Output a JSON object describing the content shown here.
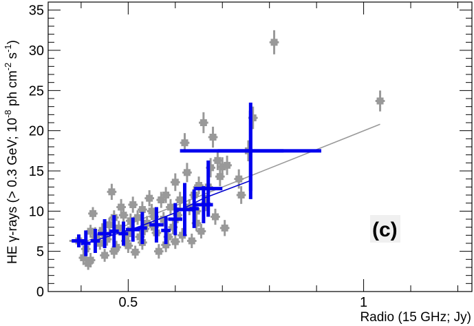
{
  "chart_data": {
    "type": "scatter",
    "xlabel": "Radio (15 GHz; Jy)",
    "ylabel_parts": {
      "pre": "HE ",
      "gamma": "γ",
      "mid": "-rays (> 0.3 GeV; 10",
      "exp1": "-8",
      "mid2": " ph cm",
      "exp2": "-2",
      "mid3": " s",
      "exp3": "-1",
      "post": ")"
    },
    "panel_label": "(c)",
    "xlim": [
      0.33,
      1.23
    ],
    "ylim": [
      0,
      36
    ],
    "x_tick_labels": [
      {
        "value": 0.5,
        "label": "0.5"
      },
      {
        "value": 1.0,
        "label": "1"
      }
    ],
    "y_tick_labels": [
      {
        "value": 0,
        "label": "0"
      },
      {
        "value": 5,
        "label": "5"
      },
      {
        "value": 10,
        "label": "10"
      },
      {
        "value": 15,
        "label": "15"
      },
      {
        "value": 20,
        "label": "20"
      },
      {
        "value": 25,
        "label": "25"
      },
      {
        "value": 30,
        "label": "30"
      },
      {
        "value": 35,
        "label": "35"
      }
    ],
    "colors": {
      "gray": "#999999",
      "blue": "#0000ee",
      "gray_line": "#999999",
      "blue_line": "#0000cc"
    },
    "series": [
      {
        "kind": "gray-points",
        "points": [
          [
            0.395,
            6.3,
            0.02,
            0.8
          ],
          [
            0.42,
            7.5,
            0.01,
            0.8
          ],
          [
            0.43,
            6.8,
            0.01,
            1.2
          ],
          [
            0.41,
            5.3,
            0.01,
            1.0
          ],
          [
            0.405,
            4.2,
            0.01,
            0.9
          ],
          [
            0.42,
            3.9,
            0.01,
            0.9
          ],
          [
            0.415,
            3.5,
            0.01,
            0.8
          ],
          [
            0.425,
            9.7,
            0.01,
            0.8
          ],
          [
            0.44,
            6.0,
            0.01,
            0.8
          ],
          [
            0.445,
            7.6,
            0.01,
            0.9
          ],
          [
            0.455,
            6.5,
            0.01,
            0.8
          ],
          [
            0.46,
            8.3,
            0.01,
            0.9
          ],
          [
            0.465,
            12.4,
            0.01,
            1.0
          ],
          [
            0.47,
            9.2,
            0.01,
            0.9
          ],
          [
            0.475,
            5.5,
            0.01,
            0.8
          ],
          [
            0.48,
            7.9,
            0.01,
            0.9
          ],
          [
            0.485,
            10.5,
            0.01,
            1.0
          ],
          [
            0.49,
            9.5,
            0.01,
            0.9
          ],
          [
            0.495,
            6.3,
            0.01,
            0.8
          ],
          [
            0.5,
            7.2,
            0.01,
            0.9
          ],
          [
            0.505,
            8.8,
            0.01,
            0.9
          ],
          [
            0.51,
            10.8,
            0.01,
            1.0
          ],
          [
            0.515,
            4.9,
            0.01,
            0.8
          ],
          [
            0.52,
            9.2,
            0.01,
            0.9
          ],
          [
            0.525,
            6.8,
            0.01,
            0.9
          ],
          [
            0.53,
            10.2,
            0.01,
            1.0
          ],
          [
            0.535,
            7.8,
            0.01,
            0.8
          ],
          [
            0.54,
            8.5,
            0.01,
            0.9
          ],
          [
            0.545,
            11.6,
            0.01,
            1.0
          ],
          [
            0.55,
            10.0,
            0.01,
            0.9
          ],
          [
            0.555,
            8.0,
            0.01,
            0.8
          ],
          [
            0.56,
            7.3,
            0.01,
            0.9
          ],
          [
            0.565,
            5.0,
            0.01,
            0.9
          ],
          [
            0.57,
            11.4,
            0.01,
            1.0
          ],
          [
            0.575,
            9.0,
            0.01,
            0.9
          ],
          [
            0.58,
            12.0,
            0.01,
            1.0
          ],
          [
            0.585,
            6.8,
            0.01,
            0.9
          ],
          [
            0.59,
            10.5,
            0.01,
            1.0
          ],
          [
            0.595,
            8.0,
            0.01,
            0.9
          ],
          [
            0.6,
            13.6,
            0.01,
            1.1
          ],
          [
            0.605,
            9.5,
            0.01,
            1.0
          ],
          [
            0.61,
            11.4,
            0.01,
            1.0
          ],
          [
            0.615,
            7.0,
            0.01,
            0.9
          ],
          [
            0.62,
            18.5,
            0.01,
            1.2
          ],
          [
            0.625,
            14.8,
            0.01,
            1.2
          ],
          [
            0.63,
            10.5,
            0.01,
            1.0
          ],
          [
            0.635,
            6.3,
            0.01,
            0.9
          ],
          [
            0.64,
            12.0,
            0.01,
            1.1
          ],
          [
            0.645,
            8.5,
            0.01,
            1.0
          ],
          [
            0.65,
            13.2,
            0.01,
            1.1
          ],
          [
            0.655,
            7.5,
            0.01,
            0.9
          ],
          [
            0.66,
            21.0,
            0.01,
            1.3
          ],
          [
            0.665,
            11.0,
            0.01,
            1.0
          ],
          [
            0.67,
            13.0,
            0.01,
            1.1
          ],
          [
            0.675,
            15.4,
            0.01,
            1.2
          ],
          [
            0.68,
            19.2,
            0.01,
            1.3
          ],
          [
            0.685,
            9.3,
            0.01,
            1.0
          ],
          [
            0.69,
            16.3,
            0.01,
            1.2
          ],
          [
            0.695,
            14.3,
            0.01,
            1.2
          ],
          [
            0.7,
            15.5,
            0.01,
            1.2
          ],
          [
            0.705,
            7.9,
            0.01,
            1.0
          ],
          [
            0.71,
            15.7,
            0.01,
            1.2
          ],
          [
            0.735,
            14.0,
            0.01,
            1.2
          ],
          [
            0.74,
            12.0,
            0.01,
            1.1
          ],
          [
            0.755,
            17.5,
            0.01,
            1.3
          ],
          [
            0.765,
            21.6,
            0.01,
            1.4
          ],
          [
            0.81,
            31.0,
            0.01,
            1.5
          ],
          [
            1.035,
            23.7,
            0.01,
            1.3
          ],
          [
            0.45,
            4.5,
            0.01,
            0.8
          ],
          [
            0.47,
            5.0,
            0.01,
            0.9
          ],
          [
            0.5,
            5.7,
            0.01,
            0.9
          ],
          [
            0.53,
            6.1,
            0.01,
            0.9
          ],
          [
            0.555,
            9.3,
            0.01,
            0.9
          ],
          [
            0.6,
            6.2,
            0.01,
            0.9
          ],
          [
            0.645,
            10.0,
            0.01,
            1.0
          ],
          [
            0.58,
            5.8,
            0.01,
            0.9
          ]
        ]
      },
      {
        "kind": "blue-bins",
        "points": [
          [
            0.395,
            6.3,
            0.015,
            0.8
          ],
          [
            0.41,
            6.0,
            0.01,
            1.6
          ],
          [
            0.43,
            6.3,
            0.01,
            1.5
          ],
          [
            0.45,
            7.2,
            0.015,
            1.8
          ],
          [
            0.47,
            7.5,
            0.01,
            2.0
          ],
          [
            0.49,
            7.2,
            0.01,
            1.5
          ],
          [
            0.51,
            7.7,
            0.015,
            1.5
          ],
          [
            0.53,
            7.9,
            0.01,
            2.0
          ],
          [
            0.56,
            8.3,
            0.015,
            2.2
          ],
          [
            0.58,
            7.6,
            0.01,
            1.7
          ],
          [
            0.6,
            9.0,
            0.015,
            2.0
          ],
          [
            0.62,
            10.2,
            0.02,
            3.3
          ],
          [
            0.64,
            10.3,
            0.01,
            2.4
          ],
          [
            0.66,
            10.8,
            0.02,
            2.3
          ],
          [
            0.67,
            12.8,
            0.03,
            3.5
          ],
          [
            0.76,
            17.5,
            0.15,
            5.0
          ],
          [
            0.76,
            17.5,
            0.07,
            6.0
          ]
        ]
      }
    ],
    "fit_lines": [
      {
        "kind": "gray-line",
        "x": [
          0.4,
          1.035
        ],
        "y": [
          6.0,
          20.8
        ]
      },
      {
        "kind": "blue-line",
        "x": [
          0.4,
          0.52,
          0.6,
          0.66,
          0.76
        ],
        "y": [
          5.8,
          8.0,
          9.8,
          11.6,
          13.8
        ]
      }
    ]
  }
}
